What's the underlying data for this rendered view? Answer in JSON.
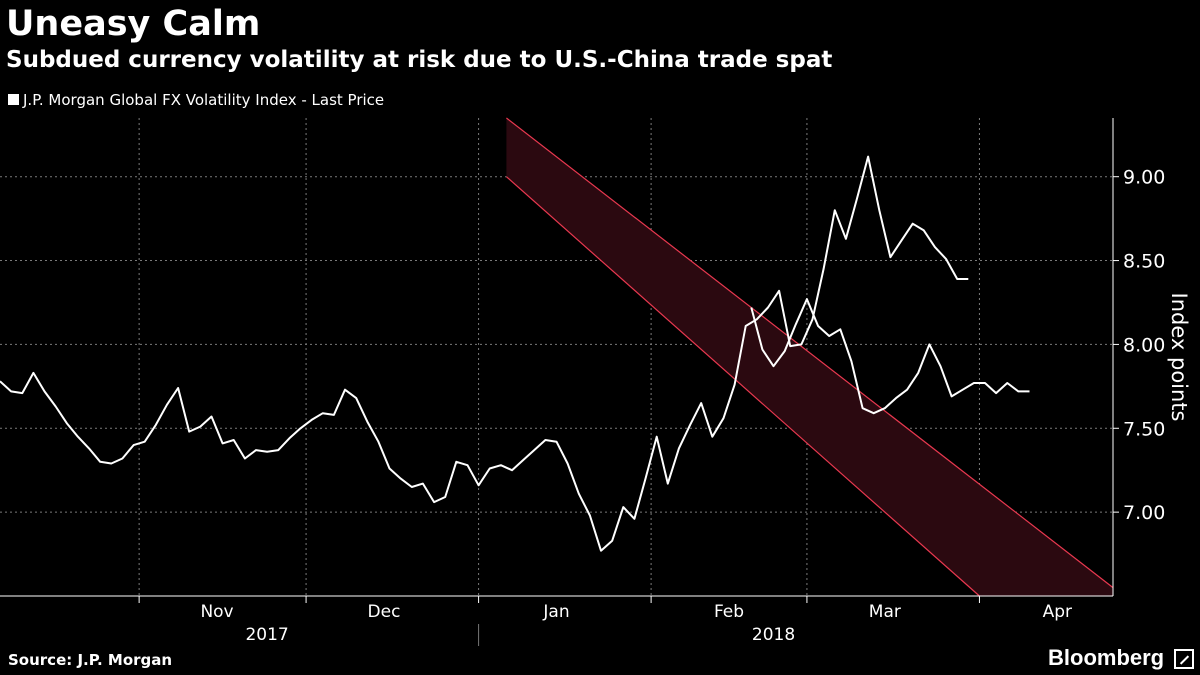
{
  "header": {
    "title": "Uneasy Calm",
    "subtitle": "Subdued currency volatility at risk due to U.S.-China trade spat"
  },
  "footer": {
    "source": "Source: J.P. Morgan",
    "brand": "Bloomberg"
  },
  "colors": {
    "background": "#000000",
    "series_line": "#ffffff",
    "channel_line": "#e8384f",
    "channel_fill": "#2b0910",
    "grid": "#7a7a7a"
  },
  "chart_data": {
    "type": "line",
    "ylabel": "Index points",
    "ylim": [
      6.5,
      9.35
    ],
    "yticks": [
      7.0,
      7.5,
      8.0,
      8.5,
      9.0
    ],
    "ytick_labels": [
      "7.00",
      "7.50",
      "8.00",
      "8.50",
      "9.00"
    ],
    "xlim": [
      "2017-10-07",
      "2018-04-25"
    ],
    "grid": true,
    "legend_position": "top-left",
    "month_ticks": [
      {
        "label": "Nov",
        "date": "2017-11-15"
      },
      {
        "label": "Dec",
        "date": "2017-12-15"
      },
      {
        "label": "Jan",
        "date": "2018-01-15"
      },
      {
        "label": "Feb",
        "date": "2018-02-15"
      },
      {
        "label": "Mar",
        "date": "2018-03-15"
      },
      {
        "label": "Apr",
        "date": "2018-04-15"
      }
    ],
    "month_boundaries": [
      "2017-11-01",
      "2017-12-01",
      "2018-01-01",
      "2018-02-01",
      "2018-03-01",
      "2018-04-01",
      "2018-05-01"
    ],
    "year_labels": [
      {
        "label": "2017",
        "date": "2017-11-24"
      },
      {
        "label": "2018",
        "date": "2018-02-23"
      }
    ],
    "year_divider": "2018-01-01",
    "series": [
      {
        "name": "J.P. Morgan Global FX Volatility Index - Last Price",
        "x": [
          "2017-10-07",
          "2017-10-09",
          "2017-10-11",
          "2017-10-13",
          "2017-10-15",
          "2017-10-17",
          "2017-10-19",
          "2017-10-21",
          "2017-10-23",
          "2017-10-25",
          "2017-10-27",
          "2017-10-29",
          "2017-10-31",
          "2017-11-02",
          "2017-11-04",
          "2017-11-06",
          "2017-11-08",
          "2017-11-10",
          "2017-11-12",
          "2017-11-14",
          "2017-11-16",
          "2017-11-18",
          "2017-11-20",
          "2017-11-22",
          "2017-11-24",
          "2017-11-26",
          "2017-11-28",
          "2017-11-30",
          "2017-12-02",
          "2017-12-04",
          "2017-12-06",
          "2017-12-08",
          "2017-12-10",
          "2017-12-12",
          "2017-12-14",
          "2017-12-16",
          "2017-12-18",
          "2017-12-20",
          "2017-12-22",
          "2017-12-24",
          "2017-12-26",
          "2017-12-28",
          "2017-12-30",
          "2018-01-01",
          "2018-01-03",
          "2018-01-05",
          "2018-01-07",
          "2018-01-09",
          "2018-01-11",
          "2018-01-13",
          "2018-01-15",
          "2018-01-17",
          "2018-01-19",
          "2018-01-21",
          "2018-01-23",
          "2018-01-25",
          "2018-01-27",
          "2018-01-29",
          "2018-01-31",
          "2018-02-02",
          "2018-02-04",
          "2018-02-06",
          "2018-02-08",
          "2018-02-10",
          "2018-02-12",
          "2018-02-14",
          "2018-02-16",
          "2018-02-18",
          "2018-02-20",
          "2018-02-22",
          "2018-02-24",
          "2018-02-26",
          "2018-02-28",
          "2018-03-02",
          "2018-03-04",
          "2018-03-06",
          "2018-03-08",
          "2018-03-10",
          "2018-03-12",
          "2018-03-14",
          "2018-03-16",
          "2018-03-18",
          "2018-03-20",
          "2018-03-22",
          "2018-03-24",
          "2018-03-26",
          "2018-03-28",
          "2018-03-30"
        ],
        "values": [
          7.78,
          7.72,
          7.71,
          7.83,
          7.72,
          7.63,
          7.53,
          7.45,
          7.38,
          7.3,
          7.29,
          7.32,
          7.4,
          7.42,
          7.52,
          7.64,
          7.74,
          7.48,
          7.51,
          7.57,
          7.41,
          7.43,
          7.32,
          7.37,
          7.36,
          7.37,
          7.44,
          7.5,
          7.55,
          7.59,
          7.58,
          7.73,
          7.68,
          7.54,
          7.42,
          7.26,
          7.2,
          7.15,
          7.17,
          7.06,
          7.09,
          7.3,
          7.28,
          7.16,
          7.26,
          7.28,
          7.25,
          7.31,
          7.37,
          7.43,
          7.42,
          7.29,
          7.11,
          6.98,
          6.77,
          6.83,
          7.03,
          6.96,
          7.2,
          7.45,
          7.17,
          7.38,
          7.52,
          7.65,
          7.45,
          7.56,
          7.76,
          8.11,
          8.15,
          8.22,
          8.32,
          7.99,
          8.0,
          8.15,
          8.45,
          8.8,
          8.63,
          8.87,
          9.12,
          8.8,
          8.52,
          8.62,
          8.72,
          8.68,
          8.58,
          8.51,
          8.39,
          8.39
        ],
        "x2": [
          "2018-02-19",
          "2018-02-21",
          "2018-02-23",
          "2018-02-25",
          "2018-02-27",
          "2018-03-01",
          "2018-03-03",
          "2018-03-05",
          "2018-03-07",
          "2018-03-09",
          "2018-03-11",
          "2018-03-13",
          "2018-03-15",
          "2018-03-17",
          "2018-03-19",
          "2018-03-21",
          "2018-03-23",
          "2018-03-25",
          "2018-03-27",
          "2018-03-29",
          "2018-03-31",
          "2018-04-02",
          "2018-04-04",
          "2018-04-06",
          "2018-04-08",
          "2018-04-10"
        ],
        "values2": [
          8.22,
          7.97,
          7.87,
          7.96,
          8.12,
          8.27,
          8.11,
          8.05,
          8.09,
          7.9,
          7.62,
          7.59,
          7.62,
          7.68,
          7.73,
          7.83,
          8.0,
          7.87,
          7.69,
          7.73,
          7.77,
          7.77,
          7.71,
          7.77,
          7.72,
          7.72
        ]
      }
    ],
    "channel": {
      "upper": [
        {
          "x": "2018-01-06",
          "y": 9.35
        },
        {
          "x": "2018-04-25",
          "y": 6.55
        }
      ],
      "lower": [
        {
          "x": "2018-01-06",
          "y": 9.0
        },
        {
          "x": "2018-04-01",
          "y": 6.5
        }
      ],
      "start": [
        {
          "x": "2018-01-06",
          "y": 9.35
        },
        {
          "x": "2018-01-06",
          "y": 9.0
        }
      ]
    }
  }
}
